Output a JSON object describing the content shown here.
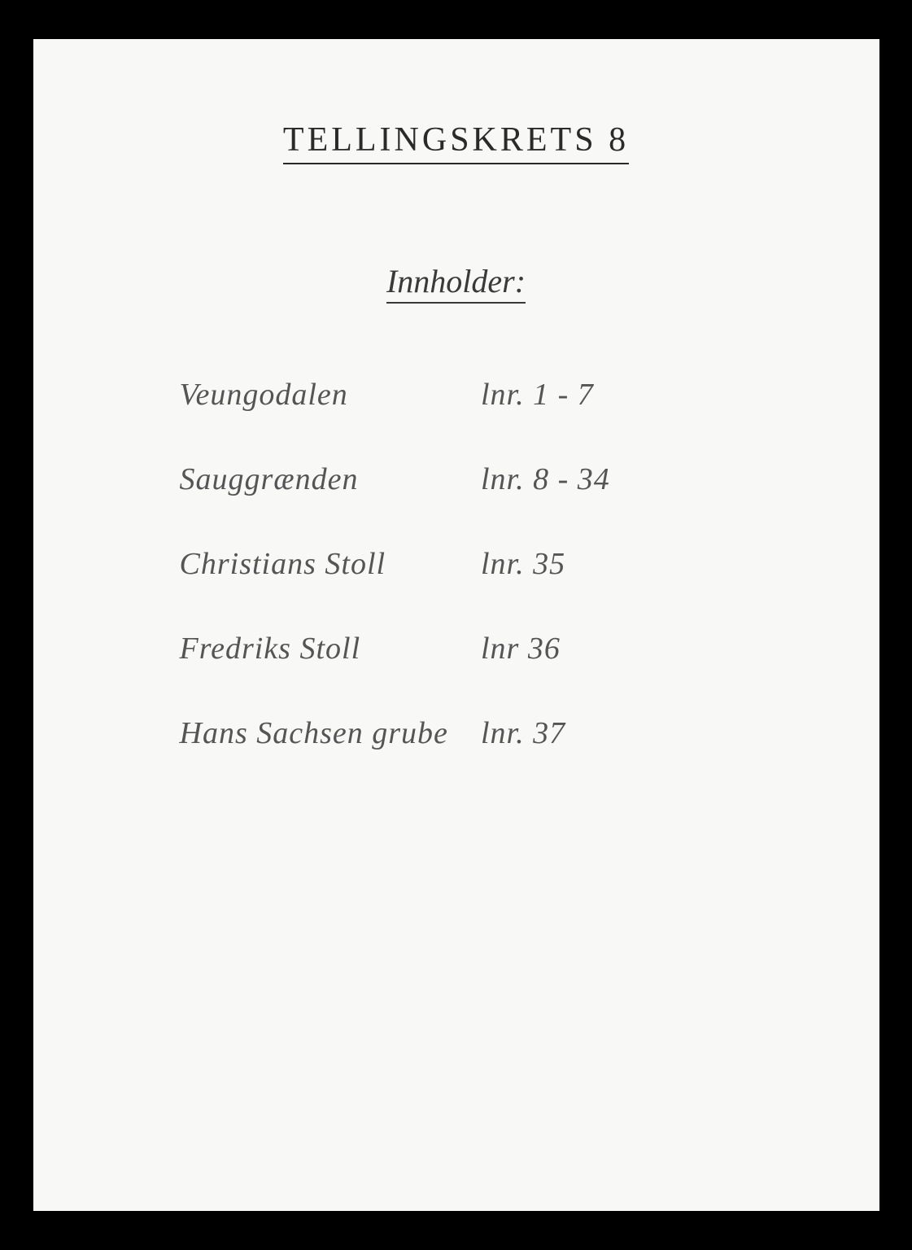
{
  "document": {
    "title": "TELLINGSKRETS  8",
    "subtitle": "Innholder:",
    "background_color": "#f8f8f6",
    "frame_color": "#000000",
    "title_color": "#2a2a2a",
    "subtitle_color": "#3a3a3a",
    "entry_color": "#555555",
    "title_fontsize": 42,
    "subtitle_fontsize": 40,
    "entry_fontsize": 38,
    "entries": [
      {
        "name": "Veungodalen",
        "ref": "lnr. 1 - 7"
      },
      {
        "name": "Sauggrænden",
        "ref": "lnr. 8 - 34"
      },
      {
        "name": "Christians Stoll",
        "ref": "lnr. 35"
      },
      {
        "name": "Fredriks Stoll",
        "ref": "lnr 36"
      },
      {
        "name": "Hans Sachsen grube",
        "ref": "lnr. 37"
      }
    ]
  }
}
